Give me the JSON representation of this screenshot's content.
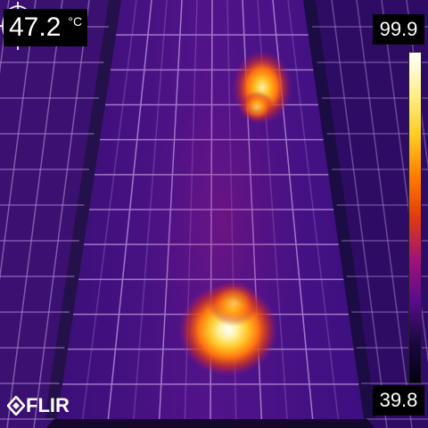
{
  "measurement": {
    "spot_temperature": "47.2",
    "unit": "°C"
  },
  "scale": {
    "max": "99.9",
    "min": "39.8",
    "palette": [
      "#ffffff",
      "#ffee88",
      "#ffcc22",
      "#ff7a00",
      "#e03a10",
      "#a0127a",
      "#5a0c8c",
      "#1a0840",
      "#040210"
    ]
  },
  "brand": {
    "logo": "FLIR"
  },
  "image": {
    "subject": "solar-panel-array",
    "hot_spots": 2
  },
  "icons": [
    "spot-meter-crosshair-icon",
    "flir-logo-icon"
  ]
}
